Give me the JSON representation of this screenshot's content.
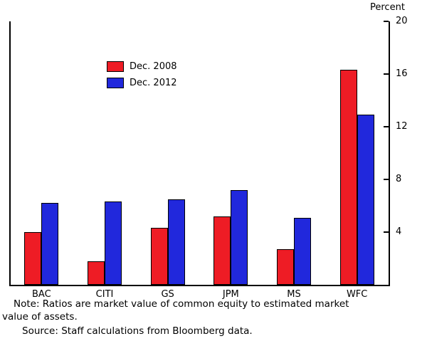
{
  "header": {
    "unit_label": "Percent"
  },
  "chart_data": {
    "type": "bar",
    "title": "",
    "categories": [
      "BAC",
      "CITI",
      "GS",
      "JPM",
      "MS",
      "WFC"
    ],
    "series": [
      {
        "name": "Dec. 2008",
        "color": "#ee1c25",
        "values": [
          4.0,
          1.8,
          4.3,
          5.2,
          2.7,
          16.3
        ]
      },
      {
        "name": "Dec. 2012",
        "color": "#2128dc",
        "values": [
          6.2,
          6.3,
          6.5,
          7.2,
          5.1,
          12.9
        ]
      }
    ],
    "xlabel": "",
    "ylabel": "Percent",
    "ylim": [
      0,
      20
    ],
    "yticks": [
      4,
      8,
      12,
      16,
      20
    ],
    "grid": false,
    "legend_position": "upper-left"
  },
  "footer": {
    "note_line1": "Note: Ratios are market value of common equity to estimated market",
    "note_line2": "value of assets.",
    "source": "Source: Staff calculations from Bloomberg data."
  }
}
